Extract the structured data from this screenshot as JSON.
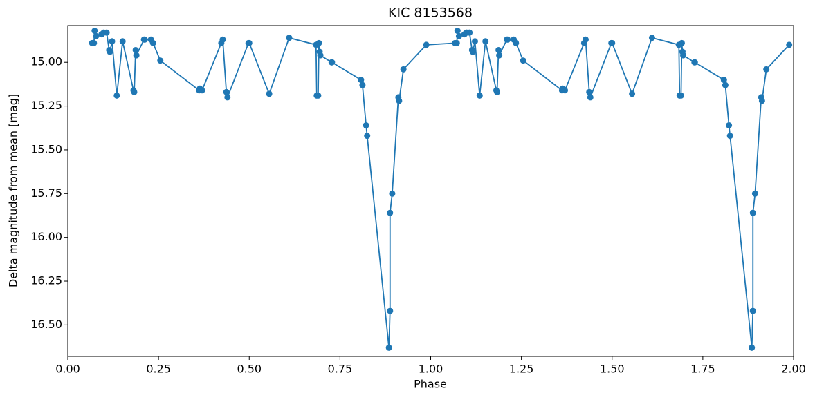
{
  "chart_data": {
    "type": "line",
    "title": "KIC 8153568",
    "x_label": "Phase",
    "y_label": "Delta magnitude from mean [mag]",
    "x": [
      0.067,
      0.072,
      0.074,
      0.078,
      0.093,
      0.099,
      0.107,
      0.114,
      0.116,
      0.122,
      0.135,
      0.151,
      0.181,
      0.183,
      0.187,
      0.189,
      0.21,
      0.212,
      0.229,
      0.235,
      0.255,
      0.362,
      0.364,
      0.37,
      0.423,
      0.427,
      0.437,
      0.44,
      0.498,
      0.5,
      0.555,
      0.61,
      0.684,
      0.686,
      0.69,
      0.692,
      0.694,
      0.696,
      0.727,
      0.728,
      0.808,
      0.812,
      0.822,
      0.825,
      0.885,
      0.888,
      0.888,
      0.894,
      0.911,
      0.913,
      0.925,
      0.988,
      1.067,
      1.072,
      1.074,
      1.078,
      1.093,
      1.099,
      1.107,
      1.114,
      1.116,
      1.122,
      1.135,
      1.151,
      1.181,
      1.183,
      1.187,
      1.189,
      1.21,
      1.212,
      1.229,
      1.235,
      1.255,
      1.362,
      1.364,
      1.37,
      1.423,
      1.427,
      1.437,
      1.44,
      1.498,
      1.5,
      1.555,
      1.61,
      1.684,
      1.686,
      1.69,
      1.692,
      1.694,
      1.696,
      1.727,
      1.728,
      1.808,
      1.812,
      1.822,
      1.825,
      1.885,
      1.888,
      1.888,
      1.894,
      1.911,
      1.913,
      1.925,
      1.988
    ],
    "series": [
      {
        "color": "#1f77b4",
        "values": [
          14.89,
          14.89,
          14.82,
          14.85,
          14.84,
          14.83,
          14.83,
          14.93,
          14.94,
          14.88,
          15.19,
          14.88,
          15.16,
          15.17,
          14.93,
          14.96,
          14.87,
          14.87,
          14.87,
          14.89,
          14.99,
          15.16,
          15.15,
          15.16,
          14.89,
          14.87,
          15.17,
          15.2,
          14.89,
          14.89,
          15.18,
          14.86,
          14.9,
          15.19,
          15.19,
          14.89,
          14.94,
          14.96,
          15.0,
          15.0,
          15.1,
          15.13,
          15.36,
          15.42,
          16.63,
          16.42,
          15.86,
          15.75,
          15.2,
          15.22,
          15.04,
          14.9,
          14.89,
          14.89,
          14.82,
          14.85,
          14.84,
          14.83,
          14.83,
          14.93,
          14.94,
          14.88,
          15.19,
          14.88,
          15.16,
          15.17,
          14.93,
          14.96,
          14.87,
          14.87,
          14.87,
          14.89,
          14.99,
          15.16,
          15.15,
          15.16,
          14.89,
          14.87,
          15.17,
          15.2,
          14.89,
          14.89,
          15.18,
          14.86,
          14.9,
          15.19,
          15.19,
          14.89,
          14.94,
          14.96,
          15.0,
          15.0,
          15.1,
          15.13,
          15.36,
          15.42,
          16.63,
          16.42,
          15.86,
          15.75,
          15.2,
          15.22,
          15.04,
          14.9
        ]
      }
    ],
    "xlim": [
      0,
      2
    ],
    "xticks": [
      {
        "value": 0,
        "label": "0.00"
      },
      {
        "value": 0.25,
        "label": "0.25"
      },
      {
        "value": 0.5,
        "label": "0.50"
      },
      {
        "value": 0.75,
        "label": "0.75"
      },
      {
        "value": 1,
        "label": "1.00"
      },
      {
        "value": 1.25,
        "label": "1.25"
      },
      {
        "value": 1.5,
        "label": "1.50"
      },
      {
        "value": 1.75,
        "label": "1.75"
      },
      {
        "value": 2,
        "label": "2.00"
      }
    ],
    "ylim": [
      16.68,
      14.79
    ],
    "yticks": [
      {
        "value": 15,
        "label": "15.00"
      },
      {
        "value": 15.25,
        "label": "15.25"
      },
      {
        "value": 15.5,
        "label": "15.50"
      },
      {
        "value": 15.75,
        "label": "15.75"
      },
      {
        "value": 16,
        "label": "16.00"
      },
      {
        "value": 16.25,
        "label": "16.25"
      },
      {
        "value": 16.5,
        "label": "16.50"
      }
    ]
  }
}
